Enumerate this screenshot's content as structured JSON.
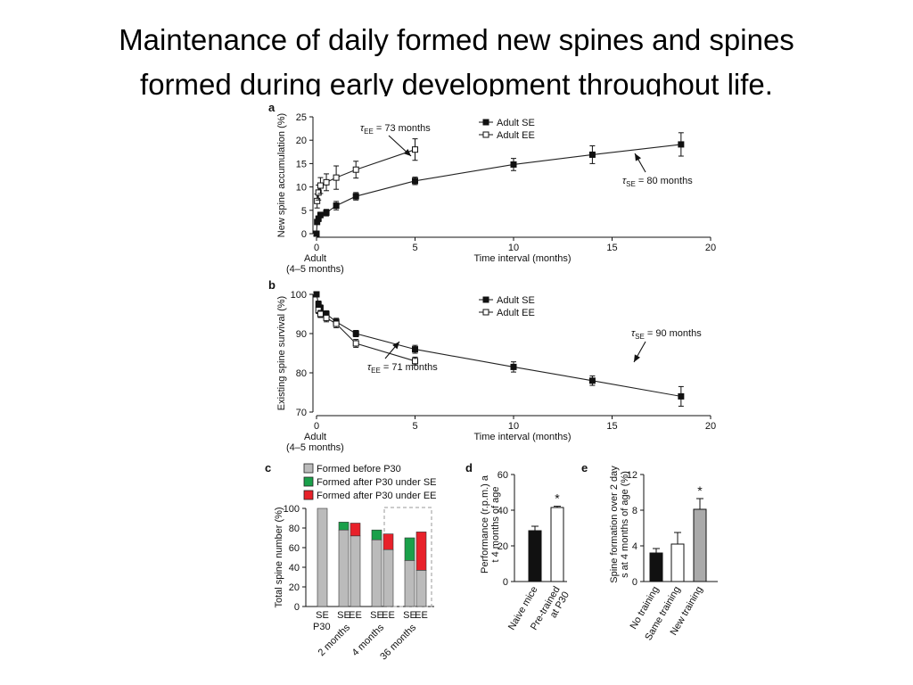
{
  "slide": {
    "title_line1": "Maintenance of daily formed new spines and spines",
    "title_line2": "formed during early development throughout life."
  },
  "chart_data": [
    {
      "type": "line",
      "panel": "a",
      "ylabel": "New spine accumulation (%)",
      "xlabel": "Time interval (months)",
      "x_origin_label": "Adult",
      "x_origin_sublabel": "(4–5 months)",
      "xlim": [
        0,
        20
      ],
      "ylim": [
        0,
        25
      ],
      "xticks": [
        0,
        5,
        10,
        15,
        20
      ],
      "yticks": [
        0,
        5,
        10,
        15,
        20,
        25
      ],
      "series": [
        {
          "name": "Adult SE",
          "marker": "filled-square",
          "x": [
            0,
            0.03,
            0.1,
            0.2,
            0.5,
            1,
            2,
            5,
            10,
            14,
            18.5
          ],
          "y": [
            0,
            2.5,
            3.2,
            4.0,
            4.5,
            6.0,
            8.0,
            11.3,
            14.8,
            16.9,
            19.1
          ],
          "err": [
            0.3,
            0.5,
            0.6,
            0.6,
            0.7,
            0.9,
            0.8,
            0.8,
            1.3,
            1.9,
            2.5
          ]
        },
        {
          "name": "Adult EE",
          "marker": "open-square",
          "x": [
            0.03,
            0.1,
            0.2,
            0.5,
            1,
            2,
            5
          ],
          "y": [
            7.0,
            8.8,
            10.3,
            11.0,
            12.0,
            13.7,
            18.0
          ],
          "err": [
            1.5,
            1.6,
            1.7,
            1.8,
            2.5,
            1.8,
            2.3
          ]
        }
      ],
      "annotations": [
        {
          "tau": "τ",
          "sub": "EE",
          "text": "= 73 months"
        },
        {
          "tau": "τ",
          "sub": "SE",
          "text": "= 80 months"
        }
      ]
    },
    {
      "type": "line",
      "panel": "b",
      "ylabel": "Existing spine survival (%)",
      "xlabel": "Time interval (months)",
      "x_origin_label": "Adult",
      "x_origin_sublabel": "(4–5 months)",
      "xlim": [
        0,
        20
      ],
      "ylim": [
        70,
        100
      ],
      "xticks": [
        0,
        5,
        10,
        15,
        20
      ],
      "yticks": [
        70,
        80,
        90,
        100
      ],
      "series": [
        {
          "name": "Adult SE",
          "marker": "filled-square",
          "x": [
            0,
            0.1,
            0.2,
            0.5,
            1,
            2,
            5,
            10,
            14,
            18.5
          ],
          "y": [
            100,
            97.5,
            96.5,
            95.0,
            93.0,
            90.0,
            86.0,
            81.5,
            78.0,
            74.0
          ],
          "err": [
            0.3,
            0.8,
            0.8,
            0.8,
            0.9,
            0.8,
            1.0,
            1.3,
            1.2,
            2.5
          ]
        },
        {
          "name": "Adult EE",
          "marker": "open-square",
          "x": [
            0.1,
            0.2,
            0.5,
            1,
            2,
            5
          ],
          "y": [
            96.0,
            95.0,
            94.0,
            92.5,
            87.5,
            83.0
          ],
          "err": [
            0.9,
            0.9,
            1.0,
            1.0,
            1.0,
            1.0
          ]
        }
      ],
      "annotations": [
        {
          "tau": "τ",
          "sub": "EE",
          "text": "= 71 months"
        },
        {
          "tau": "τ",
          "sub": "SE",
          "text": "= 90 months"
        }
      ]
    },
    {
      "type": "bar",
      "panel": "c",
      "stacked": true,
      "ylabel": "Total spine number (%)",
      "ylim": [
        0,
        100
      ],
      "yticks": [
        0,
        20,
        40,
        60,
        80,
        100
      ],
      "legend": [
        {
          "name": "Formed before P30",
          "color": "#bbbbbb"
        },
        {
          "name": "Formed after P30 under SE",
          "color": "#1aa04a"
        },
        {
          "name": "Formed after P30 under EE",
          "color": "#e8212a"
        }
      ],
      "bars": [
        {
          "label": "SE",
          "group": "P30",
          "before": 100,
          "after": 0,
          "after_type": "SE"
        },
        {
          "label": "SE",
          "group": "2 months",
          "before": 78,
          "after": 8,
          "after_type": "SE"
        },
        {
          "label": "EE",
          "group": "2 months",
          "before": 72,
          "after": 13,
          "after_type": "EE"
        },
        {
          "label": "SE",
          "group": "4 months",
          "before": 68,
          "after": 10,
          "after_type": "SE"
        },
        {
          "label": "EE",
          "group": "4 months",
          "before": 58,
          "after": 16,
          "after_type": "EE"
        },
        {
          "label": "SE",
          "group": "36 months",
          "before": 47,
          "after": 23,
          "after_type": "SE"
        },
        {
          "label": "EE",
          "group": "36 months",
          "before": 37,
          "after": 39,
          "after_type": "EE"
        }
      ],
      "group_labels": [
        "P30",
        "2 months",
        "4 months",
        "36 months"
      ],
      "label_colors": {
        "SE": "#1aa04a",
        "EE": "#e8212a"
      }
    },
    {
      "type": "bar",
      "panel": "d",
      "ylabel": "Performance (r.p.m.) at 4 months of age",
      "ylim": [
        0,
        60
      ],
      "yticks": [
        0,
        20,
        40,
        60
      ],
      "categories": [
        "Naive mice",
        "Pre-trained at P30"
      ],
      "values": [
        28.5,
        41.5
      ],
      "err": [
        2.5,
        0.7
      ],
      "fills": [
        "#111111",
        "#ffffff"
      ],
      "significance": [
        "",
        "*"
      ]
    },
    {
      "type": "bar",
      "panel": "e",
      "ylabel": "Spine formation over 2 days at 4 months of age (%)",
      "ylim": [
        0,
        12
      ],
      "yticks": [
        0,
        4,
        8,
        12
      ],
      "categories": [
        "No training",
        "Same training",
        "New training"
      ],
      "values": [
        3.2,
        4.2,
        8.1
      ],
      "err": [
        0.5,
        1.3,
        1.2
      ],
      "fills": [
        "#111111",
        "#ffffff",
        "#aaaaaa"
      ],
      "significance": [
        "",
        "",
        "*"
      ]
    }
  ]
}
